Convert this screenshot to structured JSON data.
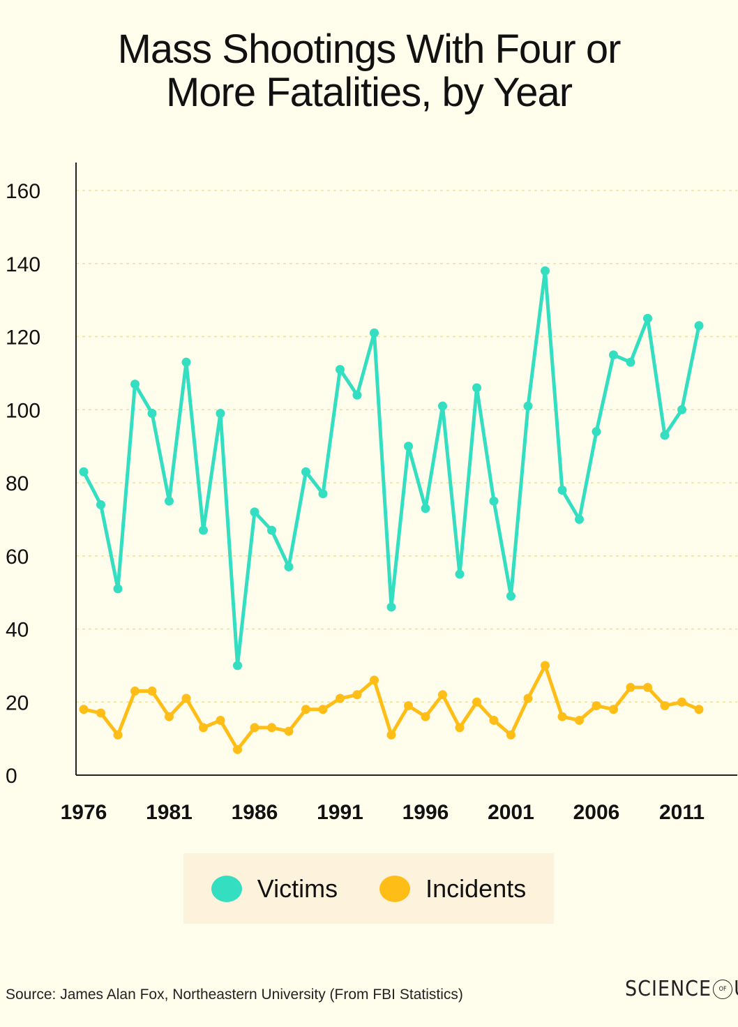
{
  "chart_data": {
    "type": "line",
    "title": [
      "Mass Shootings With Four or",
      "More Fatalities, by Year"
    ],
    "xlabel": "",
    "ylabel": "",
    "x": [
      1976,
      1977,
      1978,
      1979,
      1980,
      1981,
      1982,
      1983,
      1984,
      1985,
      1986,
      1987,
      1988,
      1989,
      1990,
      1991,
      1992,
      1993,
      1994,
      1995,
      1996,
      1997,
      1998,
      1999,
      2000,
      2001,
      2002,
      2003,
      2004,
      2005,
      2006,
      2007,
      2008,
      2009,
      2010,
      2011,
      2012
    ],
    "x_ticks": [
      "1976",
      "1981",
      "1986",
      "1991",
      "1996",
      "2001",
      "2006",
      "2011"
    ],
    "ylim": [
      0,
      160
    ],
    "y_ticks": [
      "0",
      "20",
      "40",
      "60",
      "80",
      "100",
      "120",
      "140",
      "160"
    ],
    "grid": true,
    "series": [
      {
        "name": "Victims",
        "color": "#33dfc0",
        "values": [
          83,
          74,
          51,
          107,
          99,
          75,
          113,
          67,
          99,
          30,
          72,
          67,
          57,
          83,
          77,
          111,
          104,
          121,
          46,
          90,
          73,
          101,
          55,
          106,
          75,
          49,
          101,
          138,
          78,
          70,
          94,
          115,
          113,
          125,
          93,
          100,
          123
        ]
      },
      {
        "name": "Incidents",
        "color": "#ffbe17",
        "values": [
          18,
          17,
          11,
          23,
          23,
          16,
          21,
          13,
          15,
          7,
          13,
          13,
          12,
          18,
          18,
          21,
          22,
          26,
          11,
          19,
          16,
          22,
          13,
          20,
          15,
          11,
          21,
          30,
          16,
          15,
          19,
          18,
          24,
          24,
          19,
          20,
          18
        ]
      }
    ]
  },
  "legend": {
    "victims_label": "Victims",
    "incidents_label": "Incidents"
  },
  "footer": {
    "source": "Source: James Alan Fox, Northeastern University (From FBI Statistics)",
    "brand_left": "SCIENCE",
    "brand_of": "OF",
    "brand_right": "US"
  }
}
